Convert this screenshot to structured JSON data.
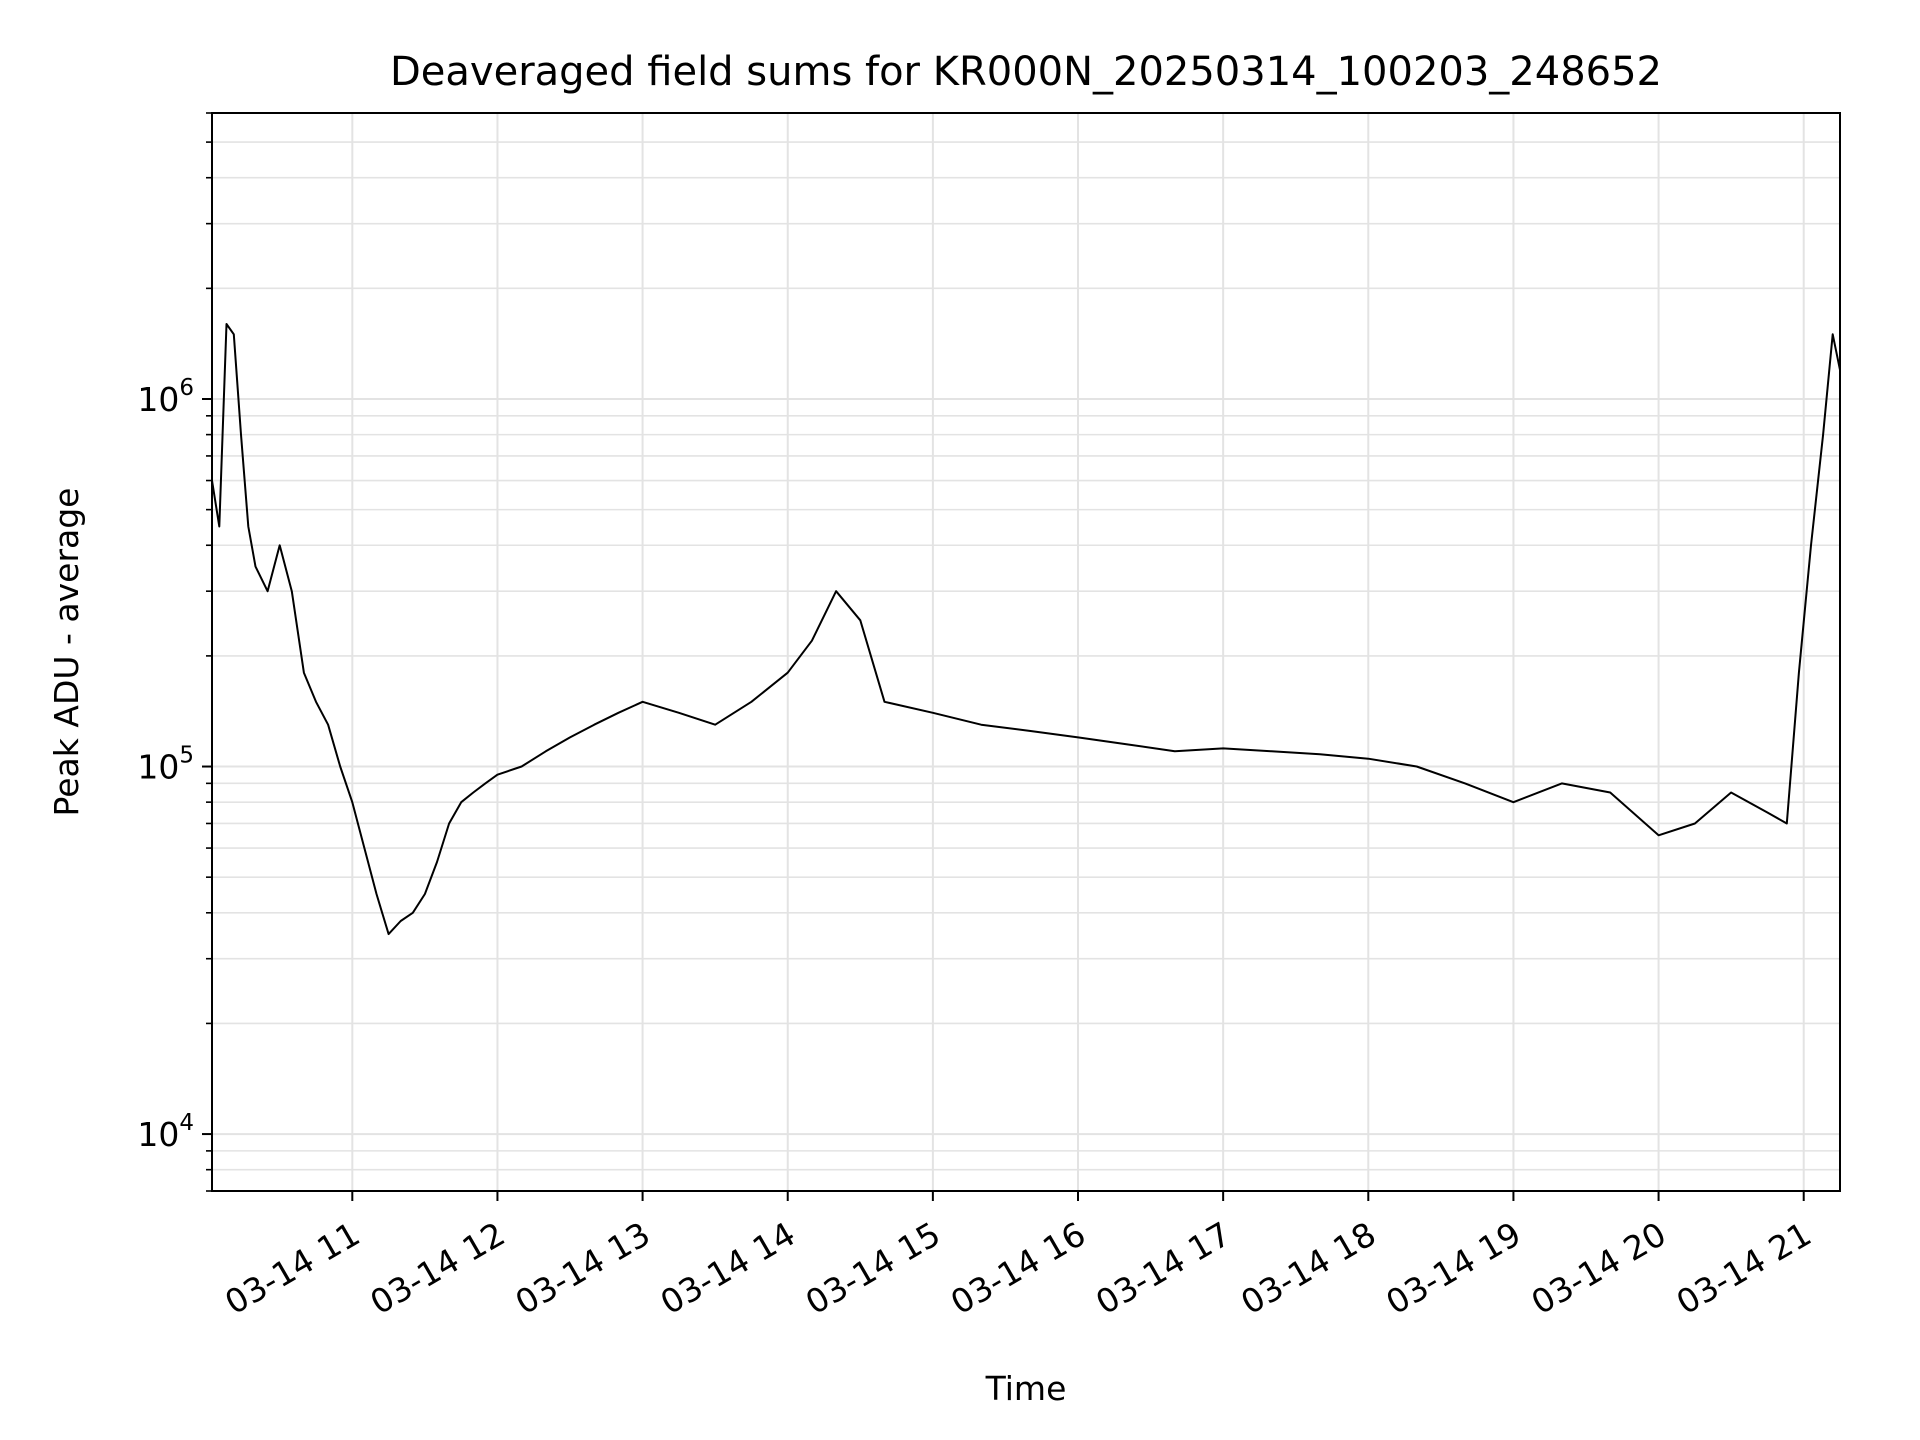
{
  "chart_data": {
    "type": "line",
    "title": "Deaveraged field sums for KR000N_20250314_100203_248652",
    "xlabel": "Time",
    "ylabel": "Peak ADU - average",
    "yscale": "log",
    "ylim": [
      7000,
      6000000
    ],
    "xlim": [
      "03-14 10:02",
      "03-14 21:15"
    ],
    "grid": true,
    "line_color": "#000000",
    "x_ticks": [
      "03-14 11",
      "03-14 12",
      "03-14 13",
      "03-14 14",
      "03-14 15",
      "03-14 16",
      "03-14 17",
      "03-14 18",
      "03-14 19",
      "03-14 20",
      "03-14 21"
    ],
    "y_ticks": [
      {
        "base": "10",
        "exp": "4",
        "value": 10000
      },
      {
        "base": "10",
        "exp": "5",
        "value": 100000
      },
      {
        "base": "10",
        "exp": "6",
        "value": 1000000
      }
    ],
    "series": [
      {
        "x": [
          "03-14 10:02",
          "03-14 10:05",
          "03-14 10:08",
          "03-14 10:11",
          "03-14 10:14",
          "03-14 10:17",
          "03-14 10:20",
          "03-14 10:25",
          "03-14 10:30",
          "03-14 10:35",
          "03-14 10:40",
          "03-14 10:45",
          "03-14 10:50",
          "03-14 10:55",
          "03-14 11:00",
          "03-14 11:05",
          "03-14 11:10",
          "03-14 11:15",
          "03-14 11:20",
          "03-14 11:25",
          "03-14 11:30",
          "03-14 11:35",
          "03-14 11:40",
          "03-14 11:45",
          "03-14 11:50",
          "03-14 11:55",
          "03-14 12:00",
          "03-14 12:10",
          "03-14 12:20",
          "03-14 12:30",
          "03-14 12:40",
          "03-14 12:50",
          "03-14 13:00",
          "03-14 13:15",
          "03-14 13:30",
          "03-14 13:45",
          "03-14 14:00",
          "03-14 14:10",
          "03-14 14:20",
          "03-14 14:30",
          "03-14 14:40",
          "03-14 15:00",
          "03-14 15:20",
          "03-14 15:40",
          "03-14 16:00",
          "03-14 16:20",
          "03-14 16:40",
          "03-14 17:00",
          "03-14 17:20",
          "03-14 17:40",
          "03-14 18:00",
          "03-14 18:20",
          "03-14 18:40",
          "03-14 19:00",
          "03-14 19:20",
          "03-14 19:40",
          "03-14 20:00",
          "03-14 20:15",
          "03-14 20:30",
          "03-14 20:45",
          "03-14 20:53",
          "03-14 20:58",
          "03-14 21:03",
          "03-14 21:08",
          "03-14 21:12",
          "03-14 21:15"
        ],
        "values": [
          600000,
          450000,
          1600000,
          1500000,
          800000,
          450000,
          350000,
          300000,
          400000,
          300000,
          180000,
          150000,
          130000,
          100000,
          80000,
          60000,
          45000,
          35000,
          38000,
          40000,
          45000,
          55000,
          70000,
          80000,
          85000,
          90000,
          95000,
          100000,
          110000,
          120000,
          130000,
          140000,
          150000,
          140000,
          130000,
          150000,
          180000,
          220000,
          300000,
          250000,
          150000,
          140000,
          130000,
          125000,
          120000,
          115000,
          110000,
          112000,
          110000,
          108000,
          105000,
          100000,
          90000,
          80000,
          90000,
          85000,
          65000,
          70000,
          85000,
          75000,
          70000,
          180000,
          400000,
          800000,
          1500000,
          1200000
        ]
      }
    ]
  }
}
